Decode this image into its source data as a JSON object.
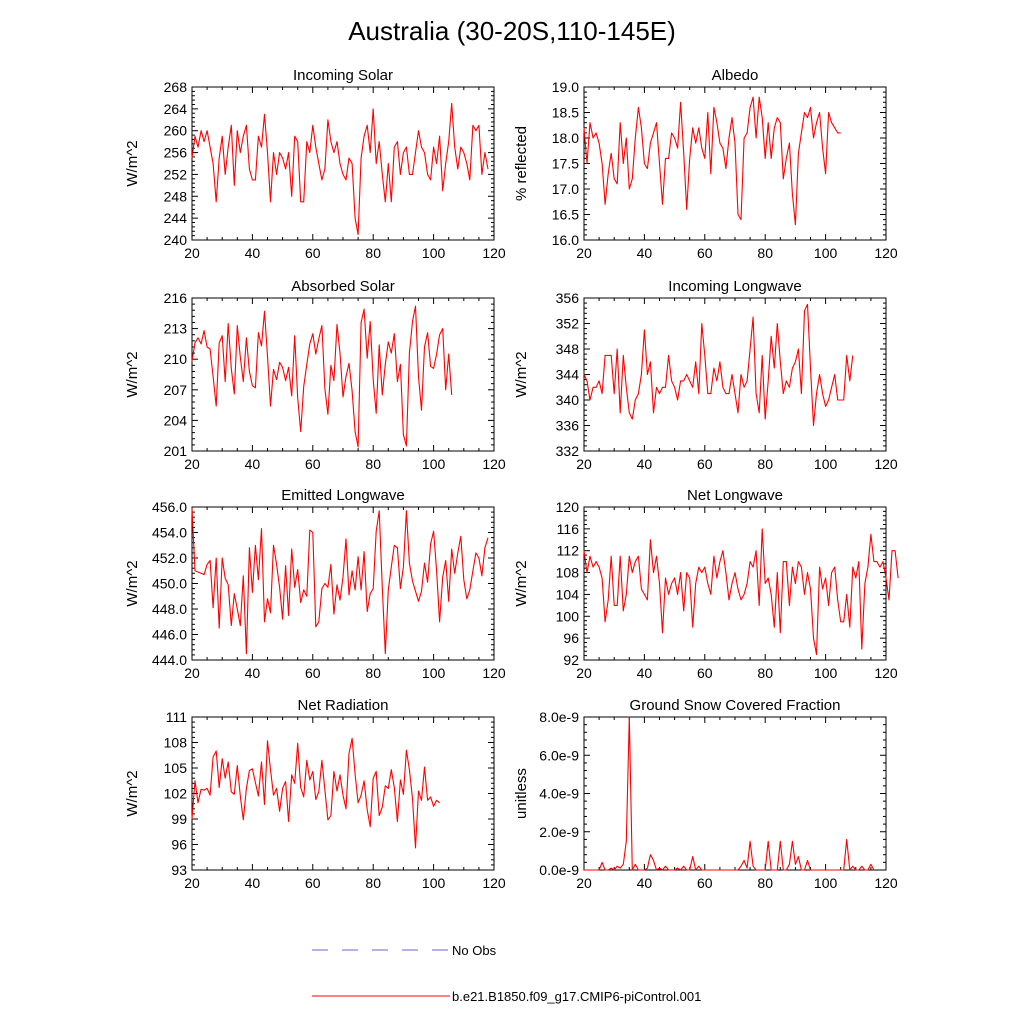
{
  "figure": {
    "title": "Australia (30-20S,110-145E)",
    "colors": {
      "model": "#ff0000",
      "obs": "#6666cc",
      "axis": "#000000"
    }
  },
  "legend": {
    "obs_label": "No Obs",
    "model_label": "b.e21.B1850.f09_g17.CMIP6-piControl.001"
  },
  "chart_data": [
    {
      "type": "line",
      "title": "Incoming Solar",
      "xlabel": "",
      "ylabel": "W/m^2",
      "xlim": [
        20,
        120
      ],
      "ylim": [
        240,
        268
      ],
      "xticks": [
        "20",
        "40",
        "60",
        "80",
        "100",
        "120"
      ],
      "yticks": [
        "240",
        "244",
        "248",
        "252",
        "256",
        "260",
        "264",
        "268"
      ],
      "series": [
        {
          "name": "b.e21.B1850.f09_g17.CMIP6-piControl.001",
          "x_start": 20,
          "x_step": 1,
          "values": [
            255,
            259,
            257,
            260,
            258,
            260,
            257,
            254,
            247,
            255,
            259,
            252,
            257,
            261,
            250,
            260,
            256,
            259,
            261,
            253,
            251,
            251,
            259,
            257,
            263,
            256,
            247,
            256,
            252,
            256,
            255,
            253,
            256,
            248,
            259,
            258,
            247,
            247,
            258,
            256,
            261,
            257,
            254,
            251,
            253,
            262,
            258,
            256,
            258,
            254,
            252,
            251,
            255,
            254,
            244,
            241,
            255,
            259,
            261,
            256,
            264,
            254,
            258,
            252,
            247,
            254,
            247,
            257,
            258,
            252,
            256,
            257,
            252,
            252,
            256,
            260,
            257,
            256,
            252,
            251,
            257,
            254,
            259,
            249,
            254,
            258,
            265,
            257,
            253,
            257,
            256,
            254,
            251,
            261,
            260,
            261,
            252,
            256,
            253
          ]
        }
      ]
    },
    {
      "type": "line",
      "title": "Albedo",
      "xlabel": "",
      "ylabel": "% reflected",
      "xlim": [
        20,
        120
      ],
      "ylim": [
        16.0,
        19.0
      ],
      "xticks": [
        "20",
        "40",
        "60",
        "80",
        "100",
        "120"
      ],
      "yticks": [
        "16.0",
        "16.5",
        "17.0",
        "17.5",
        "18.0",
        "18.5",
        "19.0"
      ],
      "series": [
        {
          "name": "b.e21.B1850.f09_g17.CMIP6-piControl.001",
          "x_start": 20,
          "x_step": 1,
          "values": [
            18.2,
            17.5,
            18.3,
            18.0,
            18.1,
            17.9,
            17.5,
            16.7,
            17.3,
            17.7,
            17.2,
            17.1,
            18.3,
            17.5,
            18.0,
            17.0,
            17.2,
            18.0,
            18.6,
            18.2,
            17.5,
            17.4,
            17.9,
            18.1,
            18.3,
            17.5,
            16.7,
            17.6,
            17.6,
            18.1,
            18.0,
            17.8,
            18.7,
            17.7,
            16.6,
            17.6,
            18.2,
            17.9,
            18.2,
            17.8,
            17.6,
            18.5,
            17.3,
            18.6,
            18.3,
            17.9,
            17.8,
            17.4,
            18.0,
            18.4,
            17.9,
            16.5,
            16.4,
            18.0,
            18.1,
            18.6,
            18.8,
            18.0,
            18.8,
            18.4,
            17.6,
            18.3,
            17.6,
            18.2,
            18.4,
            18.3,
            17.2,
            17.6,
            17.9,
            16.9,
            16.3,
            17.7,
            18.1,
            18.5,
            18.4,
            18.6,
            18.0,
            18.3,
            18.5,
            17.8,
            17.3,
            18.5,
            18.3,
            18.2,
            18.1,
            18.1
          ]
        }
      ]
    },
    {
      "type": "line",
      "title": "Absorbed Solar",
      "xlabel": "",
      "ylabel": "W/m^2",
      "xlim": [
        20,
        120
      ],
      "ylim": [
        201,
        216
      ],
      "xticks": [
        "20",
        "40",
        "60",
        "80",
        "100",
        "120"
      ],
      "yticks": [
        "201",
        "204",
        "207",
        "210",
        "213",
        "216"
      ],
      "series": [
        {
          "name": "b.e21.B1850.f09_g17.CMIP6-piControl.001",
          "x_start": 20,
          "x_step": 1,
          "values": [
            209.8,
            211.6,
            212.1,
            211.5,
            212.8,
            211.2,
            211.0,
            208.3,
            205.4,
            211.6,
            212.3,
            207.8,
            213.5,
            209.1,
            206.6,
            213.3,
            210.2,
            207.8,
            212.1,
            208.8,
            207.4,
            207.2,
            212.6,
            211.3,
            214.7,
            210.3,
            205.4,
            209.0,
            208.0,
            209.7,
            209.2,
            207.9,
            209.2,
            206.4,
            212.3,
            206.2,
            202.9,
            207.3,
            209.5,
            211.5,
            212.5,
            210.5,
            212.0,
            213.3,
            207.1,
            204.6,
            209.4,
            207.9,
            213.4,
            210.6,
            206.3,
            208.3,
            209.6,
            206.9,
            202.9,
            201.4,
            213.6,
            214.9,
            210.1,
            213.7,
            208.0,
            204.7,
            211.4,
            206.5,
            209.5,
            211.7,
            210.6,
            212.5,
            207.8,
            209.5,
            202.6,
            201.5,
            210.6,
            213.7,
            215.2,
            208.3,
            205.0,
            211.2,
            212.6,
            209.3,
            209.1,
            210.5,
            212.4,
            213.0,
            207.0,
            210.5,
            206.5
          ]
        }
      ]
    },
    {
      "type": "line",
      "title": "Incoming Longwave",
      "xlabel": "",
      "ylabel": "W/m^2",
      "xlim": [
        20,
        120
      ],
      "ylim": [
        332,
        356
      ],
      "xticks": [
        "20",
        "40",
        "60",
        "80",
        "100",
        "120"
      ],
      "yticks": [
        "332",
        "336",
        "340",
        "344",
        "348",
        "352",
        "356"
      ],
      "series": [
        {
          "name": "b.e21.B1850.f09_g17.CMIP6-piControl.001",
          "x_start": 20,
          "x_step": 1,
          "values": [
            344,
            343,
            340,
            342,
            342,
            343,
            341,
            347,
            347,
            347,
            341,
            348,
            338,
            347,
            342,
            338,
            337,
            340,
            341,
            344,
            351,
            344,
            346,
            338,
            342,
            341,
            342,
            342,
            347,
            343,
            342,
            340,
            343,
            343,
            344,
            343,
            342,
            346,
            341,
            352,
            347,
            341,
            341,
            345,
            343,
            346,
            342,
            341,
            341,
            344,
            341,
            338,
            344,
            342,
            343,
            348,
            353,
            341,
            338,
            347,
            337,
            343,
            350,
            345,
            352,
            346,
            341,
            343,
            342,
            345,
            346,
            348,
            341,
            354,
            355,
            345,
            336,
            341,
            344,
            341,
            339,
            340,
            342,
            344,
            340,
            340,
            340,
            347,
            343,
            347
          ]
        }
      ]
    },
    {
      "type": "line",
      "title": "Emitted Longwave",
      "xlabel": "",
      "ylabel": "W/m^2",
      "xlim": [
        20,
        120
      ],
      "ylim": [
        444.0,
        456.0
      ],
      "xticks": [
        "20",
        "40",
        "60",
        "80",
        "100",
        "120"
      ],
      "yticks": [
        "444.0",
        "446.0",
        "448.0",
        "450.0",
        "452.0",
        "454.0",
        "456.0"
      ],
      "series": [
        {
          "name": "b.e21.B1850.f09_g17.CMIP6-piControl.001",
          "x_start": 20,
          "x_step": 1,
          "values": [
            455.9,
            451.0,
            450.9,
            450.8,
            450.7,
            451.5,
            451.8,
            448.1,
            452.0,
            446.5,
            452.0,
            450.4,
            449.9,
            446.7,
            449.2,
            448.0,
            446.7,
            450.6,
            444.5,
            452.8,
            449.3,
            453.0,
            450.3,
            454.3,
            447.0,
            448.8,
            447.7,
            453.0,
            451.5,
            449.7,
            447.2,
            451.4,
            447.5,
            452.7,
            449.7,
            451.1,
            448.5,
            449.5,
            449.0,
            454.2,
            454.0,
            446.6,
            447.0,
            449.6,
            450.0,
            449.7,
            451.5,
            447.6,
            449.9,
            448.7,
            450.5,
            453.5,
            449.1,
            451.0,
            449.5,
            452.1,
            449.5,
            452.5,
            447.8,
            449.2,
            449.6,
            454.1,
            455.7,
            449.7,
            444.5,
            449.5,
            451.3,
            453.0,
            452.8,
            449.6,
            451.3,
            455.7,
            451.6,
            450.2,
            449.4,
            448.6,
            449.4,
            451.6,
            450.1,
            453.1,
            454.1,
            451.0,
            447.0,
            450.5,
            451.8,
            448.6,
            452.7,
            450.8,
            452.4,
            453.7,
            450.3,
            448.8,
            449.5,
            451.0,
            452.4,
            452.0,
            450.6,
            452.8,
            453.6
          ]
        }
      ]
    },
    {
      "type": "line",
      "title": "Net Longwave",
      "xlabel": "",
      "ylabel": "W/m^2",
      "xlim": [
        20,
        120
      ],
      "ylim": [
        92,
        120
      ],
      "xticks": [
        "20",
        "40",
        "60",
        "80",
        "100",
        "120"
      ],
      "yticks": [
        "92",
        "96",
        "100",
        "104",
        "108",
        "112",
        "116",
        "120"
      ],
      "series": [
        {
          "name": "b.e21.B1850.f09_g17.CMIP6-piControl.001",
          "x_start": 20,
          "x_step": 1,
          "values": [
            112,
            108,
            111,
            109,
            110,
            109,
            107,
            99,
            103,
            111,
            102,
            102,
            111,
            101,
            104,
            111,
            108,
            110,
            111,
            105,
            104,
            103,
            114,
            108,
            111,
            106,
            97,
            107,
            104,
            106,
            107,
            104,
            108,
            101,
            108,
            107,
            98,
            106,
            109,
            108,
            109,
            106,
            104,
            111,
            107,
            110,
            112,
            108,
            103,
            106,
            108,
            105,
            103,
            104,
            106,
            110,
            109,
            112,
            102,
            116,
            106,
            107,
            104,
            98,
            108,
            97,
            110,
            110,
            102,
            109,
            106,
            110,
            109,
            104,
            108,
            105,
            96,
            93,
            109,
            105,
            107,
            102,
            108,
            109,
            103,
            99,
            99,
            104,
            98,
            109,
            107,
            110,
            94,
            106,
            109,
            115,
            110,
            110,
            109,
            110,
            107,
            103,
            112,
            112,
            107
          ]
        }
      ]
    },
    {
      "type": "line",
      "title": "Net Radiation",
      "xlabel": "",
      "ylabel": "W/m^2",
      "xlim": [
        20,
        120
      ],
      "ylim": [
        93,
        111
      ],
      "xticks": [
        "20",
        "40",
        "60",
        "80",
        "100",
        "120"
      ],
      "yticks": [
        "93",
        "96",
        "99",
        "102",
        "105",
        "108",
        "111"
      ],
      "series": [
        {
          "name": "b.e21.B1850.f09_g17.CMIP6-piControl.001",
          "x_start": 20,
          "x_step": 1,
          "values": [
            99.0,
            103.5,
            100.9,
            102.5,
            102.4,
            102.6,
            101.8,
            106.3,
            107.0,
            102.7,
            106.1,
            103.8,
            105.7,
            102.2,
            101.9,
            105.3,
            101.7,
            98.9,
            102.6,
            104.7,
            104.9,
            103.3,
            101.7,
            105.7,
            100.7,
            108.2,
            104.8,
            101.8,
            102.6,
            99.9,
            102.6,
            103.4,
            98.7,
            104.2,
            103.2,
            107.9,
            102.7,
            101.6,
            105.9,
            103.6,
            104.6,
            101.3,
            102.2,
            105.9,
            102.4,
            98.9,
            99.4,
            104.6,
            102.3,
            104.2,
            101.8,
            100.2,
            106.7,
            108.5,
            104.3,
            100.9,
            101.8,
            103.5,
            100.1,
            98.1,
            103.8,
            104.6,
            99.4,
            100.4,
            102.9,
            102.6,
            104.8,
            102.7,
            98.7,
            103.6,
            101.9,
            107.1,
            104.8,
            101.4,
            95.6,
            102.3,
            101.2,
            105.1,
            101.2,
            101.6,
            100.5,
            101.2,
            100.9
          ]
        }
      ]
    },
    {
      "type": "line",
      "title": "Ground Snow Covered Fraction",
      "xlabel": "",
      "ylabel": "unitless",
      "xlim": [
        20,
        120
      ],
      "ylim": [
        0,
        8e-09
      ],
      "xticks": [
        "20",
        "40",
        "60",
        "80",
        "100",
        "120"
      ],
      "yticks": [
        "0.0e-9",
        "2.0e-9",
        "4.0e-9",
        "6.0e-9",
        "8.0e-9"
      ],
      "series": [
        {
          "name": "b.e21.B1850.f09_g17.CMIP6-piControl.001",
          "x_start": 20,
          "x_step": 1,
          "values": [
            0,
            0,
            0,
            0,
            0,
            0,
            4e-10,
            0,
            0,
            1e-10,
            0,
            2e-10,
            1e-10,
            3e-10,
            1.5e-09,
            8e-09,
            0,
            3e-10,
            0,
            0,
            0,
            1e-10,
            8e-10,
            5e-10,
            0,
            1e-10,
            0,
            2e-10,
            0,
            0,
            0,
            1e-10,
            0,
            2e-10,
            0,
            0,
            7e-10,
            0,
            2e-10,
            0,
            0,
            0,
            0,
            0,
            0,
            0,
            0,
            0,
            0,
            0,
            0,
            0,
            2e-10,
            5e-10,
            1e-10,
            1.5e-09,
            2e-10,
            0,
            0,
            0,
            0,
            1.5e-09,
            0,
            0,
            0,
            1.5e-09,
            0,
            0,
            3e-10,
            1.5e-09,
            3e-10,
            7e-10,
            0,
            0,
            5e-10,
            0,
            0,
            0,
            0,
            0,
            0,
            0,
            0,
            0,
            0,
            0,
            0,
            1.6e-09,
            0,
            2e-10,
            0,
            0,
            2e-10,
            0,
            0,
            3e-10,
            0
          ]
        }
      ]
    }
  ]
}
